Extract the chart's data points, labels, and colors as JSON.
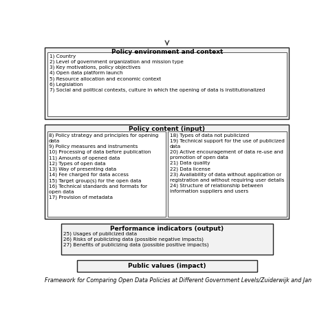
{
  "title": "Policy environment and context",
  "env_items": [
    "1) Country",
    "2) Level of government organization and mission type",
    "3) Key motivations, policy objectives",
    "4) Open data platform launch",
    "5) Resource allocation and economic context",
    "6) Legislation",
    "7) Social and political contexts, culture in which the opening of data is institutionalized"
  ],
  "policy_title": "Policy content (input)",
  "policy_left": [
    "8) Policy strategy and principles for opening",
    "data",
    "9) Policy measures and instruments",
    "10) Processing of data before publication",
    "11) Amounts of opened data",
    "12) Types of open data",
    "13) Way of presenting data",
    "14) Fee charged for data access",
    "15) Target group(s) for the open data",
    "16) Technical standards and formats for",
    "open data",
    "17) Provision of metadata"
  ],
  "policy_right": [
    "18) Types of data not publicized",
    "19) Technical support for the use of publicized",
    "data",
    "20) Active encouragement of data re-use and",
    "promotion of open data",
    "21) Data quality",
    "22) Data license",
    "23) Availability of data without application or",
    "registration and without requiring user details",
    "24) Structure of relationship between",
    "information suppliers and users"
  ],
  "perf_title": "Performance indicators (output)",
  "perf_items": [
    "25) Usages of publicized data",
    "26) Risks of publicizing data (possible negative impacts)",
    "27) Benefits of publicizing data (possible positive impacts)"
  ],
  "public_title": "Public values (impact)",
  "caption": "Framework for Comparing Open Data Policies at Different Government Levels/Zuiderwijk and Jan",
  "text_color": "#000000",
  "title_fontsize": 6.5,
  "body_fontsize": 5.2,
  "caption_fontsize": 5.8
}
